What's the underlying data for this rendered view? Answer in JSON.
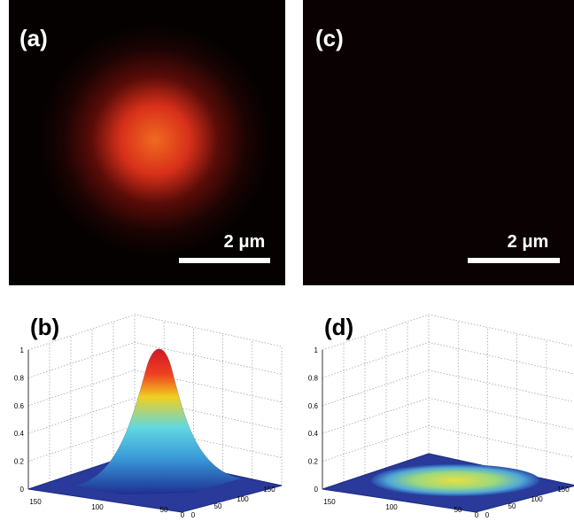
{
  "panels": [
    {
      "label": "(a)",
      "scale_bar": "2 μm"
    },
    {
      "label": "(c)",
      "scale_bar": "2 μm"
    }
  ],
  "plots": [
    {
      "label": "(b)",
      "z_ticks": [
        "1",
        "0.8",
        "0.6",
        "0.4",
        "0.2",
        "0"
      ],
      "x_ticks": [
        "150",
        "100",
        "50",
        "0"
      ],
      "y_ticks": [
        "0",
        "50",
        "100",
        "150"
      ]
    },
    {
      "label": "(d)",
      "z_ticks": [
        "1",
        "0.8",
        "0.6",
        "0.4",
        "0.2",
        "0"
      ],
      "x_ticks": [
        "150",
        "100",
        "50",
        "0"
      ],
      "y_ticks": [
        "0",
        "50",
        "100",
        "150"
      ]
    }
  ]
}
